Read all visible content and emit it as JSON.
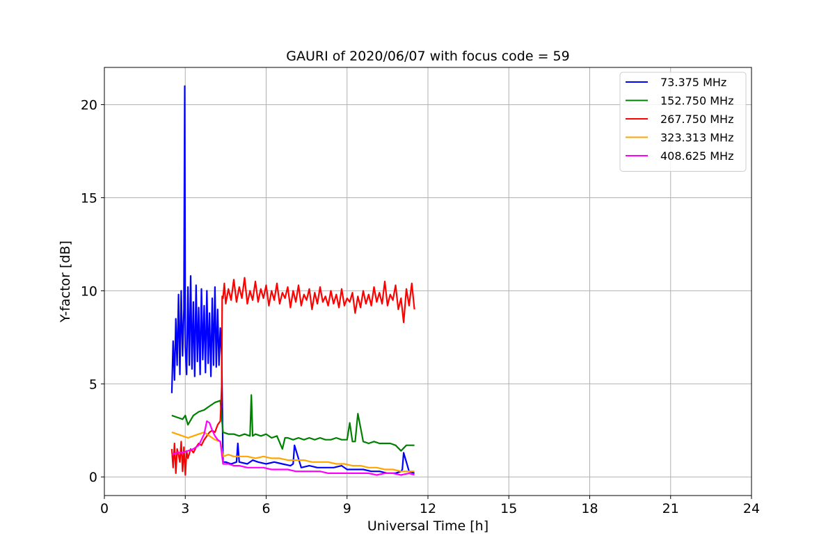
{
  "chart_data": {
    "type": "line",
    "title": "GAURI of 2020/06/07 with focus code = 59",
    "xlabel": "Universal Time [h]",
    "ylabel": "Y-factor [dB]",
    "xlim": [
      0,
      24
    ],
    "ylim": [
      -1,
      22
    ],
    "xticks": [
      0,
      3,
      6,
      9,
      12,
      15,
      18,
      21,
      24
    ],
    "yticks": [
      0,
      5,
      10,
      15,
      20
    ],
    "grid": true,
    "legend_position": "top-right",
    "series": [
      {
        "name": " 73.375 MHz",
        "color": "#0000ff",
        "x": [
          2.5,
          2.55,
          2.6,
          2.65,
          2.7,
          2.75,
          2.8,
          2.85,
          2.9,
          2.95,
          2.98,
          3.0,
          3.05,
          3.1,
          3.15,
          3.2,
          3.25,
          3.3,
          3.35,
          3.4,
          3.45,
          3.5,
          3.55,
          3.6,
          3.65,
          3.7,
          3.75,
          3.8,
          3.85,
          3.9,
          3.95,
          4.0,
          4.05,
          4.1,
          4.15,
          4.2,
          4.25,
          4.3,
          4.35,
          4.4,
          4.5,
          4.7,
          4.9,
          4.95,
          5.0,
          5.3,
          5.5,
          5.7,
          6.0,
          6.3,
          6.6,
          6.9,
          7.0,
          7.05,
          7.3,
          7.6,
          7.9,
          8.2,
          8.5,
          8.8,
          9.0,
          9.3,
          9.6,
          9.9,
          10.2,
          10.5,
          10.8,
          11.0,
          11.05,
          11.1,
          11.3,
          11.5
        ],
        "y": [
          4.5,
          7.3,
          5.2,
          8.5,
          6.0,
          9.8,
          5.5,
          10.0,
          6.5,
          9.0,
          21.0,
          7.0,
          5.5,
          10.2,
          6.0,
          10.8,
          5.8,
          9.4,
          5.4,
          10.3,
          6.2,
          9.1,
          5.5,
          10.1,
          6.3,
          9.2,
          5.6,
          10.0,
          6.1,
          8.8,
          5.4,
          9.6,
          6.0,
          10.2,
          5.9,
          9.0,
          6.0,
          8.0,
          6.5,
          0.8,
          0.8,
          0.7,
          0.8,
          1.8,
          0.8,
          0.7,
          0.9,
          0.8,
          0.7,
          0.8,
          0.7,
          0.6,
          0.7,
          1.7,
          0.5,
          0.6,
          0.5,
          0.5,
          0.5,
          0.6,
          0.4,
          0.4,
          0.4,
          0.3,
          0.3,
          0.2,
          0.2,
          0.3,
          0.4,
          1.3,
          0.3,
          0.2
        ]
      },
      {
        "name": "152.750 MHz",
        "color": "#008000",
        "x": [
          2.5,
          2.7,
          2.9,
          3.0,
          3.1,
          3.3,
          3.5,
          3.7,
          3.9,
          4.1,
          4.3,
          4.4,
          4.6,
          4.8,
          5.0,
          5.2,
          5.4,
          5.45,
          5.5,
          5.6,
          5.8,
          6.0,
          6.2,
          6.4,
          6.6,
          6.7,
          6.8,
          7.0,
          7.2,
          7.4,
          7.6,
          7.8,
          8.0,
          8.2,
          8.4,
          8.6,
          8.8,
          9.0,
          9.1,
          9.2,
          9.3,
          9.4,
          9.6,
          9.8,
          10.0,
          10.2,
          10.4,
          10.6,
          10.8,
          11.0,
          11.2,
          11.4,
          11.5
        ],
        "y": [
          3.3,
          3.2,
          3.1,
          3.3,
          2.8,
          3.3,
          3.5,
          3.6,
          3.8,
          4.0,
          4.1,
          2.4,
          2.3,
          2.3,
          2.2,
          2.3,
          2.2,
          4.4,
          2.2,
          2.3,
          2.2,
          2.3,
          2.1,
          2.2,
          1.5,
          2.1,
          2.1,
          2.0,
          2.1,
          2.0,
          2.1,
          2.0,
          2.1,
          2.0,
          2.0,
          2.1,
          2.0,
          2.0,
          2.9,
          1.9,
          1.9,
          3.4,
          1.9,
          1.8,
          1.9,
          1.8,
          1.8,
          1.8,
          1.7,
          1.4,
          1.7,
          1.7,
          1.7
        ]
      },
      {
        "name": "267.750 MHz",
        "color": "#ff0000",
        "x": [
          2.5,
          2.55,
          2.6,
          2.65,
          2.7,
          2.75,
          2.8,
          2.85,
          2.9,
          2.95,
          3.0,
          3.05,
          3.1,
          3.2,
          3.3,
          3.4,
          3.5,
          3.6,
          3.7,
          3.8,
          3.9,
          4.0,
          4.1,
          4.2,
          4.3,
          4.35,
          4.37,
          4.4,
          4.45,
          4.5,
          4.6,
          4.7,
          4.8,
          4.9,
          5.0,
          5.1,
          5.2,
          5.3,
          5.4,
          5.5,
          5.6,
          5.7,
          5.8,
          5.9,
          6.0,
          6.1,
          6.2,
          6.3,
          6.4,
          6.5,
          6.6,
          6.7,
          6.8,
          6.9,
          7.0,
          7.1,
          7.2,
          7.3,
          7.4,
          7.5,
          7.6,
          7.7,
          7.8,
          7.9,
          8.0,
          8.1,
          8.2,
          8.3,
          8.4,
          8.5,
          8.6,
          8.7,
          8.8,
          8.9,
          9.0,
          9.1,
          9.2,
          9.3,
          9.4,
          9.5,
          9.6,
          9.7,
          9.8,
          9.9,
          10.0,
          10.1,
          10.2,
          10.3,
          10.4,
          10.5,
          10.6,
          10.7,
          10.8,
          10.9,
          11.0,
          11.1,
          11.2,
          11.3,
          11.4,
          11.5
        ],
        "y": [
          1.5,
          0.5,
          1.8,
          0.2,
          1.5,
          1.2,
          0.8,
          1.9,
          0.3,
          1.6,
          0.1,
          1.4,
          1.0,
          1.5,
          1.3,
          1.6,
          1.8,
          1.7,
          2.0,
          2.2,
          2.4,
          2.5,
          2.4,
          2.8,
          3.0,
          4.9,
          9.7,
          9.6,
          10.4,
          9.3,
          10.1,
          9.5,
          10.6,
          9.4,
          10.2,
          9.6,
          10.7,
          9.3,
          10.0,
          9.5,
          10.5,
          9.4,
          10.1,
          9.6,
          10.3,
          9.2,
          10.0,
          9.5,
          10.4,
          9.3,
          9.9,
          9.6,
          10.2,
          9.1,
          10.0,
          9.4,
          10.3,
          9.2,
          9.8,
          9.5,
          10.1,
          9.0,
          9.9,
          9.3,
          10.2,
          9.4,
          9.7,
          9.2,
          10.0,
          9.3,
          9.8,
          9.1,
          10.1,
          9.2,
          9.6,
          9.4,
          9.9,
          8.8,
          9.7,
          9.1,
          10.0,
          9.3,
          9.8,
          9.2,
          10.2,
          9.4,
          9.9,
          9.3,
          10.5,
          9.2,
          9.8,
          9.5,
          10.3,
          9.0,
          9.6,
          8.3,
          10.1,
          9.2,
          10.4,
          9.0
        ]
      },
      {
        "name": "323.313 MHz",
        "color": "#ffa500",
        "x": [
          2.5,
          2.7,
          2.9,
          3.1,
          3.3,
          3.5,
          3.7,
          3.9,
          4.1,
          4.3,
          4.4,
          4.6,
          4.8,
          5.0,
          5.3,
          5.6,
          5.9,
          6.2,
          6.5,
          6.8,
          7.1,
          7.4,
          7.7,
          8.0,
          8.3,
          8.6,
          8.9,
          9.2,
          9.5,
          9.8,
          10.1,
          10.4,
          10.7,
          11.0,
          11.3,
          11.5
        ],
        "y": [
          2.4,
          2.3,
          2.2,
          2.1,
          2.2,
          2.3,
          2.4,
          2.2,
          2.0,
          1.9,
          1.1,
          1.2,
          1.1,
          1.1,
          1.1,
          1.0,
          1.1,
          1.0,
          1.0,
          0.9,
          0.9,
          0.9,
          0.8,
          0.8,
          0.8,
          0.7,
          0.7,
          0.6,
          0.6,
          0.5,
          0.5,
          0.4,
          0.4,
          0.3,
          0.3,
          0.3
        ]
      },
      {
        "name": "408.625 MHz",
        "color": "#ff00ff",
        "x": [
          2.5,
          2.7,
          2.9,
          3.1,
          3.3,
          3.5,
          3.6,
          3.7,
          3.8,
          3.9,
          4.0,
          4.1,
          4.2,
          4.3,
          4.4,
          4.6,
          4.8,
          5.0,
          5.3,
          5.6,
          5.9,
          6.2,
          6.5,
          6.8,
          7.1,
          7.4,
          7.7,
          8.0,
          8.3,
          8.6,
          8.9,
          9.2,
          9.5,
          9.8,
          10.1,
          10.4,
          10.7,
          11.0,
          11.3,
          11.5
        ],
        "y": [
          1.2,
          1.3,
          1.3,
          1.4,
          1.5,
          1.7,
          2.0,
          2.3,
          3.0,
          2.9,
          2.5,
          2.2,
          2.0,
          1.9,
          0.7,
          0.7,
          0.6,
          0.6,
          0.5,
          0.5,
          0.5,
          0.4,
          0.4,
          0.4,
          0.3,
          0.3,
          0.3,
          0.3,
          0.2,
          0.2,
          0.2,
          0.2,
          0.2,
          0.2,
          0.1,
          0.2,
          0.2,
          0.1,
          0.2,
          0.1
        ]
      }
    ]
  }
}
